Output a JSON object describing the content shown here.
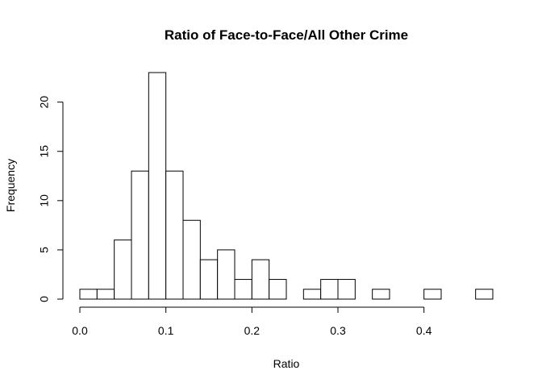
{
  "chart_data": {
    "type": "bar",
    "title": "Ratio of Face-to-Face/All Other Crime",
    "xlabel": "Ratio",
    "ylabel": "Frequency",
    "bin_width": 0.02,
    "bin_edges": [
      0.0,
      0.02,
      0.04,
      0.06,
      0.08,
      0.1,
      0.12,
      0.14,
      0.16,
      0.18,
      0.2,
      0.22,
      0.24,
      0.26,
      0.28,
      0.3,
      0.32,
      0.34,
      0.36,
      0.38,
      0.4,
      0.42,
      0.44,
      0.46,
      0.48
    ],
    "values": [
      1,
      1,
      6,
      13,
      23,
      13,
      8,
      4,
      5,
      2,
      4,
      2,
      0,
      1,
      2,
      2,
      0,
      1,
      0,
      0,
      1,
      0,
      0,
      1
    ],
    "xlim": [
      0.0,
      0.48
    ],
    "ylim": [
      0,
      23
    ],
    "x_ticks": [
      0.0,
      0.1,
      0.2,
      0.3,
      0.4
    ],
    "x_tick_labels": [
      "0.0",
      "0.1",
      "0.2",
      "0.3",
      "0.4"
    ],
    "y_ticks": [
      0,
      5,
      10,
      15,
      20
    ],
    "y_tick_labels": [
      "0",
      "5",
      "10",
      "15",
      "20"
    ],
    "grid": false,
    "bar_fill": "#ffffff",
    "bar_stroke": "#000000"
  }
}
